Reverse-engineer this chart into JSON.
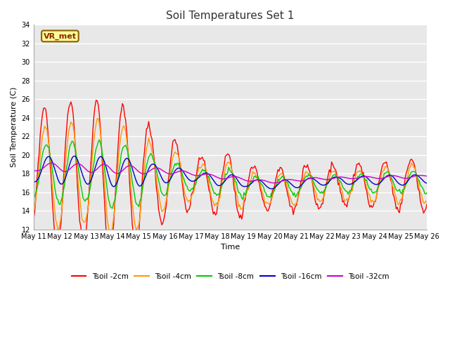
{
  "title": "Soil Temperatures Set 1",
  "xlabel": "Time",
  "ylabel": "Soil Temperature (C)",
  "ylim": [
    12,
    34
  ],
  "yticks": [
    12,
    14,
    16,
    18,
    20,
    22,
    24,
    26,
    28,
    30,
    32,
    34
  ],
  "annotation": "VR_met",
  "plot_bg": "#e8e8e8",
  "fig_bg": "#ffffff",
  "grid_color": "#ffffff",
  "line_colors": {
    "2cm": "#ff0000",
    "4cm": "#ff9900",
    "8cm": "#00cc00",
    "16cm": "#0000cc",
    "32cm": "#cc00cc"
  },
  "legend_labels": [
    "Tsoil -2cm",
    "Tsoil -4cm",
    "Tsoil -8cm",
    "Tsoil -16cm",
    "Tsoil -32cm"
  ],
  "n_days": 15,
  "start_day": 11,
  "figsize": [
    6.4,
    4.8
  ],
  "dpi": 100
}
